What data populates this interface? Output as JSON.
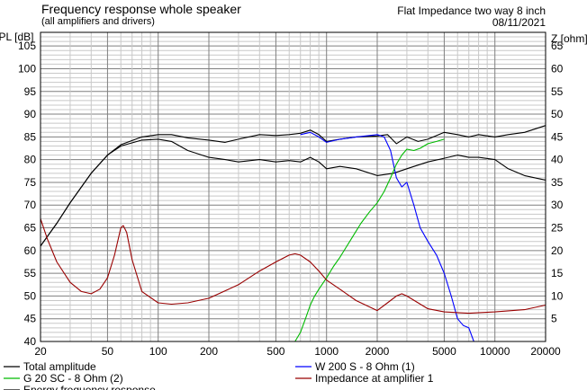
{
  "header": {
    "title": "Frequency response whole speaker",
    "subtitle": "(all amplifiers and drivers)",
    "project": "Flat Impedance two way 8 inch",
    "date": "08/11/2021"
  },
  "legend": {
    "items": [
      {
        "label": "Total amplitude",
        "color": "#000000"
      },
      {
        "label": "W 200 S - 8 Ohm (1)",
        "color": "#0000ff"
      },
      {
        "label": "G 20 SC - 8 Ohm (2)",
        "color": "#00bb00"
      },
      {
        "label": "Impedance at amplifier 1",
        "color": "#990000"
      },
      {
        "label": "Energy frequency response",
        "color": "#000000"
      }
    ]
  },
  "chart_data": {
    "type": "line",
    "title": "Frequency response whole speaker",
    "subtitle": "(all amplifiers and drivers)",
    "xscale": "log",
    "xlim": [
      20,
      20000
    ],
    "x_ticks": [
      20,
      50,
      100,
      200,
      500,
      1000,
      2000,
      5000,
      10000,
      20000
    ],
    "ylabel": "SPL [dB]",
    "ylim": [
      40,
      108
    ],
    "y_ticks": [
      40,
      45,
      50,
      55,
      60,
      65,
      70,
      75,
      80,
      85,
      90,
      95,
      100,
      105
    ],
    "y2label": "Z [ohm]",
    "y2lim": [
      0,
      68
    ],
    "y2_ticks": [
      5,
      10,
      15,
      20,
      25,
      30,
      35,
      40,
      45,
      50,
      55,
      60,
      65
    ],
    "grid": true,
    "legend_position": "bottom",
    "series": [
      {
        "name": "Total amplitude",
        "color": "#000000",
        "axis": "left",
        "x": [
          20,
          25,
          30,
          40,
          50,
          60,
          80,
          100,
          120,
          150,
          200,
          250,
          300,
          400,
          500,
          600,
          700,
          800,
          900,
          1000,
          1200,
          1500,
          2000,
          2300,
          2600,
          3000,
          3500,
          4000,
          5000,
          6000,
          7000,
          8000,
          10000,
          12000,
          15000,
          20000
        ],
        "y": [
          61,
          66,
          70.5,
          77,
          81,
          83.3,
          85,
          85.5,
          85.5,
          84.8,
          84.3,
          83.8,
          84.5,
          85.5,
          85.3,
          85.5,
          85.8,
          86.5,
          85.5,
          84,
          84.5,
          85,
          85.2,
          85.5,
          83.5,
          85,
          84,
          84.5,
          86,
          85.5,
          85,
          85.5,
          85,
          85.5,
          86,
          87.5
        ]
      },
      {
        "name": "Energy frequency response",
        "color": "#000000",
        "axis": "left",
        "x": [
          20,
          25,
          30,
          40,
          50,
          60,
          80,
          100,
          120,
          150,
          200,
          250,
          300,
          400,
          500,
          600,
          700,
          800,
          900,
          1000,
          1200,
          1500,
          2000,
          2500,
          3000,
          3500,
          4000,
          5000,
          6000,
          7000,
          8000,
          10000,
          12000,
          15000,
          20000
        ],
        "y": [
          61,
          66,
          70.5,
          77,
          81,
          83,
          84.3,
          84.5,
          84,
          82,
          80.5,
          80,
          79.5,
          80,
          79.5,
          79.8,
          79.5,
          80.5,
          79.5,
          78,
          78.5,
          78,
          76.5,
          77,
          78,
          78.8,
          79.5,
          80.3,
          81,
          80.5,
          80.5,
          80,
          78,
          76.5,
          75.5
        ]
      },
      {
        "name": "W 200 S - 8 Ohm (1)",
        "color": "#0000ff",
        "axis": "left",
        "x": [
          700,
          800,
          900,
          1000,
          1200,
          1500,
          1800,
          2000,
          2200,
          2400,
          2600,
          2800,
          3000,
          3300,
          3600,
          4000,
          4500,
          5000,
          5500,
          6000,
          6500,
          7000,
          7500,
          8000
        ],
        "y": [
          85.5,
          86,
          85,
          83.8,
          84.5,
          85,
          85.3,
          85.5,
          85,
          82,
          76,
          74,
          75,
          70,
          65,
          62,
          59,
          55,
          50,
          45,
          43.5,
          43,
          40,
          40
        ]
      },
      {
        "name": "G 20 SC - 8 Ohm (2)",
        "color": "#00bb00",
        "axis": "left",
        "x": [
          650,
          700,
          750,
          800,
          850,
          900,
          1000,
          1100,
          1200,
          1400,
          1600,
          1800,
          2000,
          2200,
          2400,
          2600,
          2800,
          3000,
          3300,
          3600,
          4000,
          4500,
          5000
        ],
        "y": [
          40,
          42,
          45,
          48,
          50,
          51.5,
          54,
          56.5,
          58.5,
          62.5,
          66,
          68.5,
          70.5,
          73,
          76,
          79,
          81,
          82.3,
          82,
          82.5,
          83.5,
          84,
          84.5
        ]
      },
      {
        "name": "Impedance at amplifier 1",
        "color": "#990000",
        "axis": "right",
        "x": [
          20,
          22,
          25,
          30,
          35,
          40,
          45,
          50,
          55,
          60,
          62,
          65,
          70,
          80,
          100,
          120,
          150,
          200,
          300,
          400,
          500,
          600,
          650,
          700,
          800,
          900,
          1000,
          1200,
          1500,
          2000,
          2300,
          2600,
          2800,
          3000,
          3500,
          4000,
          5000,
          7000,
          10000,
          15000,
          20000
        ],
        "y": [
          27,
          22.5,
          17.5,
          13,
          11,
          10.5,
          11.5,
          14,
          19,
          25,
          25.5,
          24,
          18,
          11,
          8.5,
          8.2,
          8.5,
          9.5,
          12.5,
          15.5,
          17.5,
          19,
          19.3,
          19,
          17.5,
          15.5,
          13.5,
          11.5,
          9,
          6.8,
          8.5,
          10,
          10.5,
          10,
          8.5,
          7.2,
          6.5,
          6.2,
          6.5,
          7,
          8
        ]
      }
    ]
  }
}
